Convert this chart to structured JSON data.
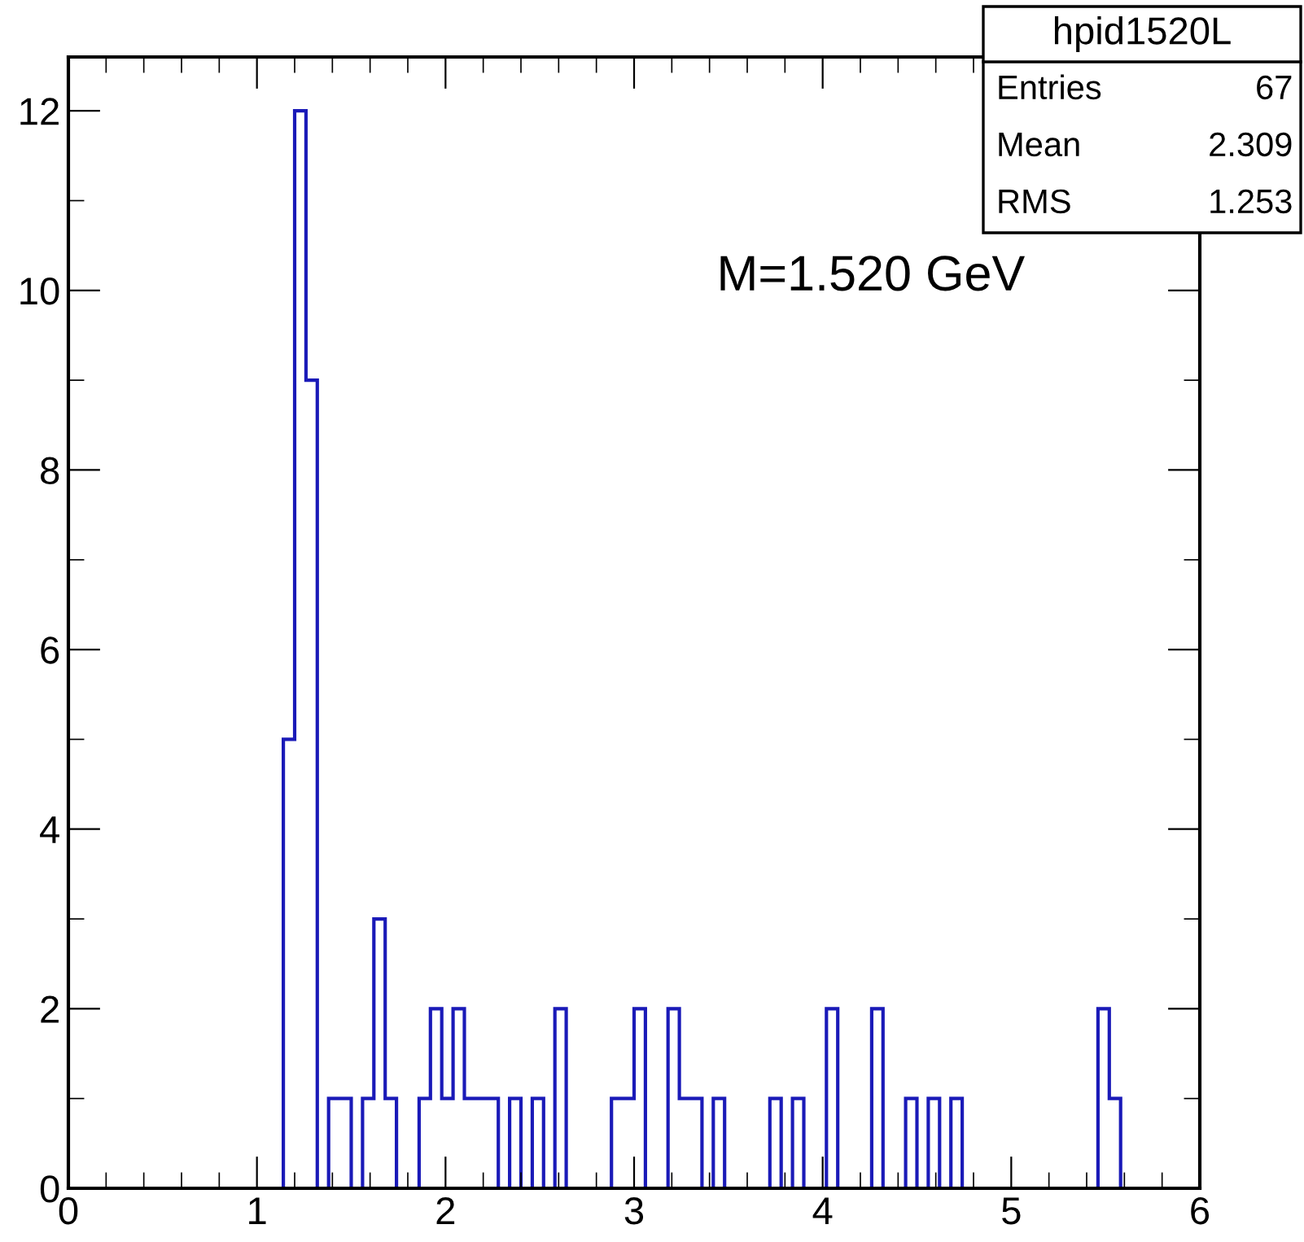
{
  "chart_data": {
    "type": "histogram",
    "bins": [
      0.0,
      0.06,
      0.12,
      0.18,
      0.24,
      0.3,
      0.36,
      0.42,
      0.48,
      0.54,
      0.6,
      0.66,
      0.72,
      0.78,
      0.84,
      0.9,
      0.96,
      1.02,
      1.08,
      1.14,
      1.2,
      1.26,
      1.32,
      1.38,
      1.44,
      1.5,
      1.56,
      1.62,
      1.68,
      1.74,
      1.8,
      1.86,
      1.92,
      1.98,
      2.04,
      2.1,
      2.16,
      2.22,
      2.28,
      2.34,
      2.4,
      2.46,
      2.52,
      2.58,
      2.64,
      2.7,
      2.76,
      2.82,
      2.88,
      2.94,
      3.0,
      3.06,
      3.12,
      3.18,
      3.24,
      3.3,
      3.36,
      3.42,
      3.48,
      3.54,
      3.6,
      3.66,
      3.72,
      3.78,
      3.84,
      3.9,
      3.96,
      4.02,
      4.08,
      4.14,
      4.2,
      4.26,
      4.32,
      4.38,
      4.44,
      4.5,
      4.56,
      4.62,
      4.68,
      4.74,
      4.8,
      4.86,
      4.92,
      4.98,
      5.04,
      5.1,
      5.16,
      5.22,
      5.28,
      5.34,
      5.4,
      5.46,
      5.52,
      5.58,
      5.64,
      5.7,
      5.76,
      5.82,
      5.88,
      5.94,
      6.0
    ],
    "values": [
      0,
      0,
      0,
      0,
      0,
      0,
      0,
      0,
      0,
      0,
      0,
      0,
      0,
      0,
      0,
      0,
      0,
      0,
      0,
      5,
      12,
      9,
      0,
      1,
      1,
      0,
      1,
      3,
      1,
      0,
      0,
      1,
      2,
      1,
      2,
      1,
      1,
      1,
      0,
      1,
      0,
      1,
      0,
      2,
      0,
      0,
      0,
      0,
      1,
      1,
      2,
      0,
      0,
      2,
      1,
      1,
      0,
      1,
      0,
      0,
      0,
      0,
      1,
      0,
      1,
      0,
      0,
      2,
      0,
      0,
      0,
      2,
      0,
      0,
      1,
      0,
      1,
      0,
      1,
      0,
      0,
      0,
      0,
      0,
      0,
      0,
      0,
      0,
      0,
      0,
      0,
      2,
      1,
      0,
      0,
      0,
      0,
      0,
      0,
      0
    ],
    "color": "#1a1ab8",
    "xlim": [
      0,
      6
    ],
    "xticks": [
      0,
      1,
      2,
      3,
      4,
      5,
      6
    ],
    "ylim": [
      0,
      12.6
    ],
    "yticks": [
      0,
      2,
      4,
      6,
      8,
      10,
      12
    ],
    "grid": false,
    "legend": false,
    "annotations": [
      "hpid1520L",
      "Entries",
      "67",
      "Mean",
      "2.309",
      "RMS",
      "1.253",
      "M=1.520 GeV"
    ]
  }
}
